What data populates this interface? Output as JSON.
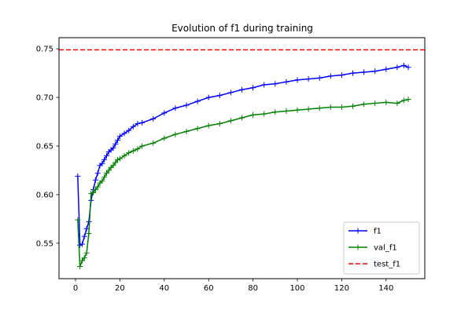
{
  "chart_data": {
    "type": "line",
    "title": "Evolution of f1 during training",
    "xlabel": "",
    "ylabel": "",
    "xlim": [
      -7.45,
      157.45
    ],
    "ylim": [
      0.5135,
      0.7615
    ],
    "xticks": [
      0,
      20,
      40,
      60,
      80,
      100,
      120,
      140
    ],
    "yticks": [
      0.55,
      0.6,
      0.65,
      0.7,
      0.75
    ],
    "ytick_labels": [
      "0.55",
      "0.60",
      "0.65",
      "0.70",
      "0.75"
    ],
    "grid": false,
    "legend_position": "lower-right",
    "series": [
      {
        "name": "f1",
        "color": "#0000ff",
        "marker": "+",
        "x": [
          1,
          2,
          3,
          4,
          5,
          6,
          7,
          8,
          9,
          10,
          11,
          12,
          13,
          14,
          15,
          16,
          17,
          18,
          19,
          20,
          22,
          24,
          26,
          28,
          30,
          35,
          40,
          45,
          50,
          55,
          60,
          65,
          70,
          75,
          80,
          85,
          90,
          95,
          100,
          105,
          110,
          115,
          120,
          125,
          130,
          135,
          140,
          145,
          148,
          150
        ],
        "y": [
          0.619,
          0.548,
          0.549,
          0.557,
          0.565,
          0.572,
          0.594,
          0.605,
          0.615,
          0.622,
          0.63,
          0.632,
          0.636,
          0.64,
          0.644,
          0.646,
          0.648,
          0.652,
          0.656,
          0.66,
          0.663,
          0.666,
          0.67,
          0.673,
          0.674,
          0.678,
          0.684,
          0.689,
          0.692,
          0.696,
          0.7,
          0.702,
          0.705,
          0.708,
          0.71,
          0.713,
          0.714,
          0.716,
          0.718,
          0.719,
          0.72,
          0.722,
          0.723,
          0.725,
          0.726,
          0.727,
          0.729,
          0.731,
          0.733,
          0.731
        ]
      },
      {
        "name": "val_f1",
        "color": "#008000",
        "marker": "+",
        "x": [
          1,
          2,
          3,
          4,
          5,
          6,
          7,
          8,
          9,
          10,
          11,
          12,
          13,
          14,
          15,
          16,
          17,
          18,
          19,
          20,
          22,
          24,
          26,
          28,
          30,
          35,
          40,
          45,
          50,
          55,
          60,
          65,
          70,
          75,
          80,
          85,
          90,
          95,
          100,
          105,
          110,
          115,
          120,
          125,
          130,
          135,
          140,
          145,
          148,
          150
        ],
        "y": [
          0.574,
          0.526,
          0.532,
          0.535,
          0.54,
          0.56,
          0.601,
          0.602,
          0.605,
          0.608,
          0.612,
          0.614,
          0.618,
          0.622,
          0.625,
          0.628,
          0.63,
          0.633,
          0.636,
          0.637,
          0.64,
          0.643,
          0.645,
          0.647,
          0.65,
          0.653,
          0.658,
          0.662,
          0.665,
          0.668,
          0.671,
          0.673,
          0.676,
          0.679,
          0.682,
          0.683,
          0.685,
          0.686,
          0.687,
          0.688,
          0.689,
          0.69,
          0.69,
          0.691,
          0.693,
          0.694,
          0.695,
          0.694,
          0.697,
          0.698
        ]
      },
      {
        "name": "test_f1",
        "color": "#ff0000",
        "style": "dashed",
        "y_constant": 0.749
      }
    ]
  }
}
